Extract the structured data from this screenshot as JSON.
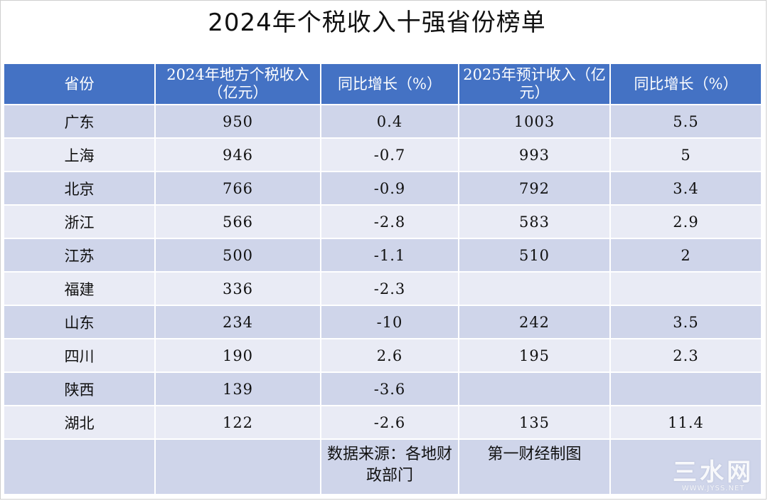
{
  "title": "2024年个税收入十强省份榜单",
  "table": {
    "headers": [
      "省份",
      "2024年地方个税收入（亿元）",
      "同比增长（%）",
      "2025年预计收入（亿元）",
      "同比增长（%）"
    ],
    "rows": [
      [
        "广东",
        "950",
        "0.4",
        "1003",
        "5.5"
      ],
      [
        "上海",
        "946",
        "-0.7",
        "993",
        "5"
      ],
      [
        "北京",
        "766",
        "-0.9",
        "792",
        "3.4"
      ],
      [
        "浙江",
        "566",
        "-2.8",
        "583",
        "2.9"
      ],
      [
        "江苏",
        "500",
        "-1.1",
        "510",
        "2"
      ],
      [
        "福建",
        "336",
        "-2.3",
        "",
        ""
      ],
      [
        "山东",
        "234",
        "-10",
        "242",
        "3.5"
      ],
      [
        "四川",
        "190",
        "2.6",
        "195",
        "2.3"
      ],
      [
        "陕西",
        "139",
        "-3.6",
        "",
        ""
      ],
      [
        "湖北",
        "122",
        "-2.6",
        "135",
        "11.4"
      ]
    ],
    "footer": {
      "source": "数据来源：各地财政部门",
      "credit": "第一财经制图"
    }
  },
  "watermark": {
    "brand": "三水网",
    "domain": "WWW.JYSS.NET"
  }
}
